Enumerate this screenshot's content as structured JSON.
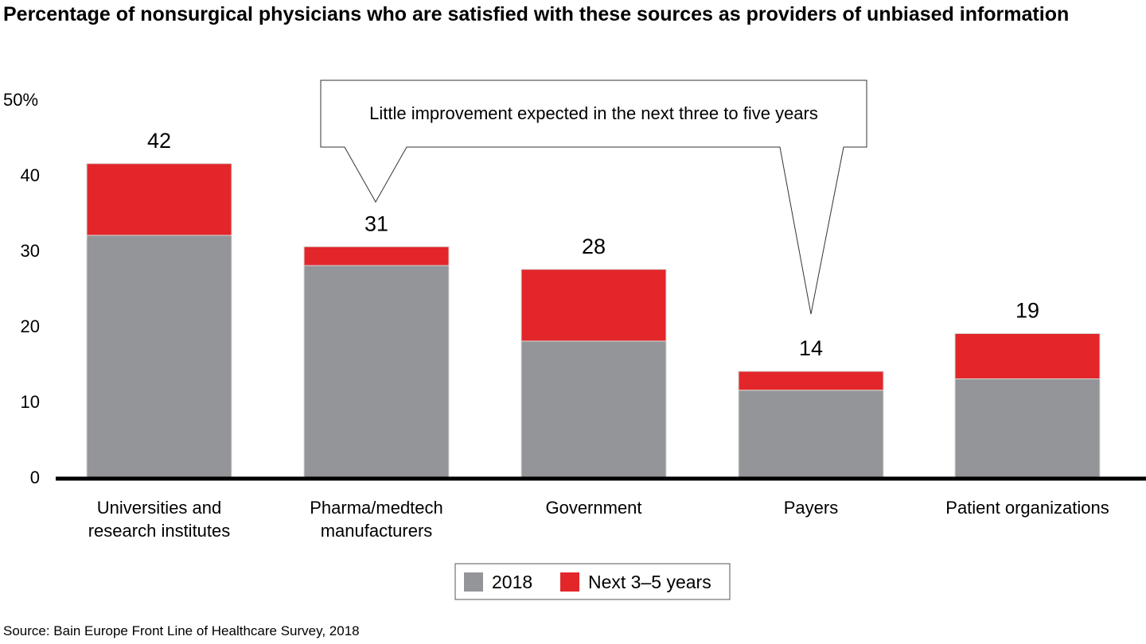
{
  "chart_data": {
    "type": "bar",
    "stacked": true,
    "title": "Percentage of nonsurgical physicians who are satisfied with these sources as providers of unbiased information",
    "xlabel": "",
    "ylabel": "",
    "ylim": [
      0,
      50
    ],
    "yticks": [
      0,
      10,
      20,
      30,
      40,
      50
    ],
    "ytick_labels": [
      "0",
      "10",
      "20",
      "30",
      "40",
      "50%"
    ],
    "grid": false,
    "categories": [
      "Universities and\nresearch institutes",
      "Pharma/medtech\nmanufacturers",
      "Government",
      "Payers",
      "Patient organizations"
    ],
    "series": [
      {
        "name": "2018",
        "color": "#939598",
        "values": [
          32,
          28,
          18,
          11.5,
          13
        ]
      },
      {
        "name": "Next 3–5 years",
        "color": "#e3262a",
        "values": [
          9.5,
          2.5,
          9.5,
          2.5,
          6
        ]
      }
    ],
    "total_labels": [
      "42",
      "31",
      "28",
      "14",
      "19"
    ],
    "legend": {
      "position": "bottom",
      "items": [
        "2018",
        "Next 3–5 years"
      ]
    },
    "annotation": {
      "text": "Little improvement expected in the next three to five years",
      "points_to": [
        "Pharma/medtech manufacturers",
        "Payers"
      ]
    }
  },
  "source": "Source: Bain Europe Front Line of Healthcare Survey, 2018"
}
